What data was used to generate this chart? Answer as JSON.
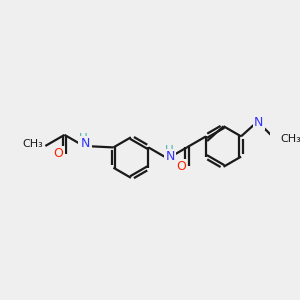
{
  "bg_color": "#efefef",
  "bond_color": "#1a1a1a",
  "N_color": "#3333ff",
  "O_color": "#ff2200",
  "H_color": "#4ab0b0",
  "line_width": 1.6,
  "figsize": [
    3.0,
    3.0
  ],
  "dpi": 100,
  "xlim": [
    0,
    10
  ],
  "ylim": [
    2,
    8
  ]
}
